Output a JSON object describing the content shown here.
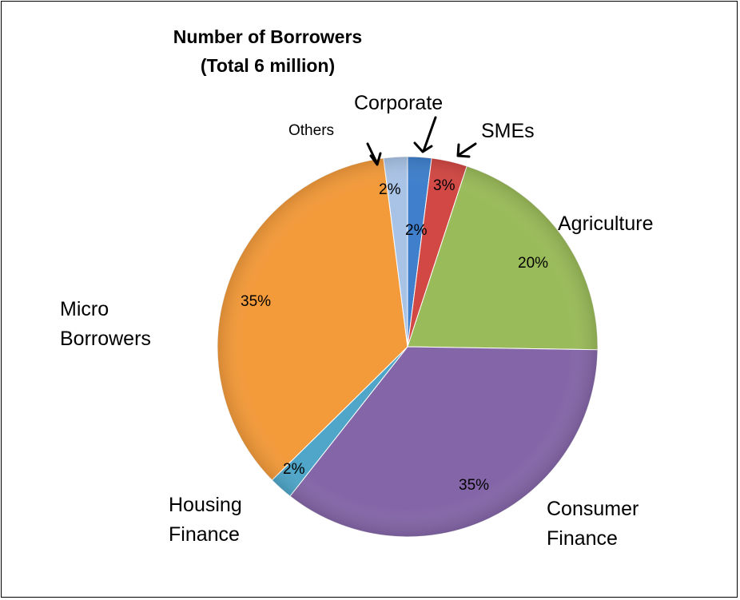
{
  "chart_data": {
    "type": "pie",
    "title_lines": [
      "Number of Borrowers",
      "(Total 6 million)"
    ],
    "slices": [
      {
        "label": "Corporate",
        "value": 2,
        "data_label": "2%",
        "color": "#3F7FCC"
      },
      {
        "label": "SMEs",
        "value": 3,
        "data_label": "3%",
        "color": "#D24844"
      },
      {
        "label": "Agriculture",
        "value": 20,
        "data_label": "20%",
        "color": "#9ABB59"
      },
      {
        "label": "Consumer Finance",
        "value": 35,
        "data_label": "35%",
        "color": "#8466A8"
      },
      {
        "label": "Housing Finance",
        "value": 2,
        "data_label": "2%",
        "color": "#4FA6C9"
      },
      {
        "label": "Micro Borrowers",
        "value": 35,
        "data_label": "35%",
        "color": "#F39A3A"
      },
      {
        "label": "Others",
        "value": 2,
        "data_label": "2%",
        "color": "#A9C3E6"
      }
    ],
    "legend": "none"
  }
}
